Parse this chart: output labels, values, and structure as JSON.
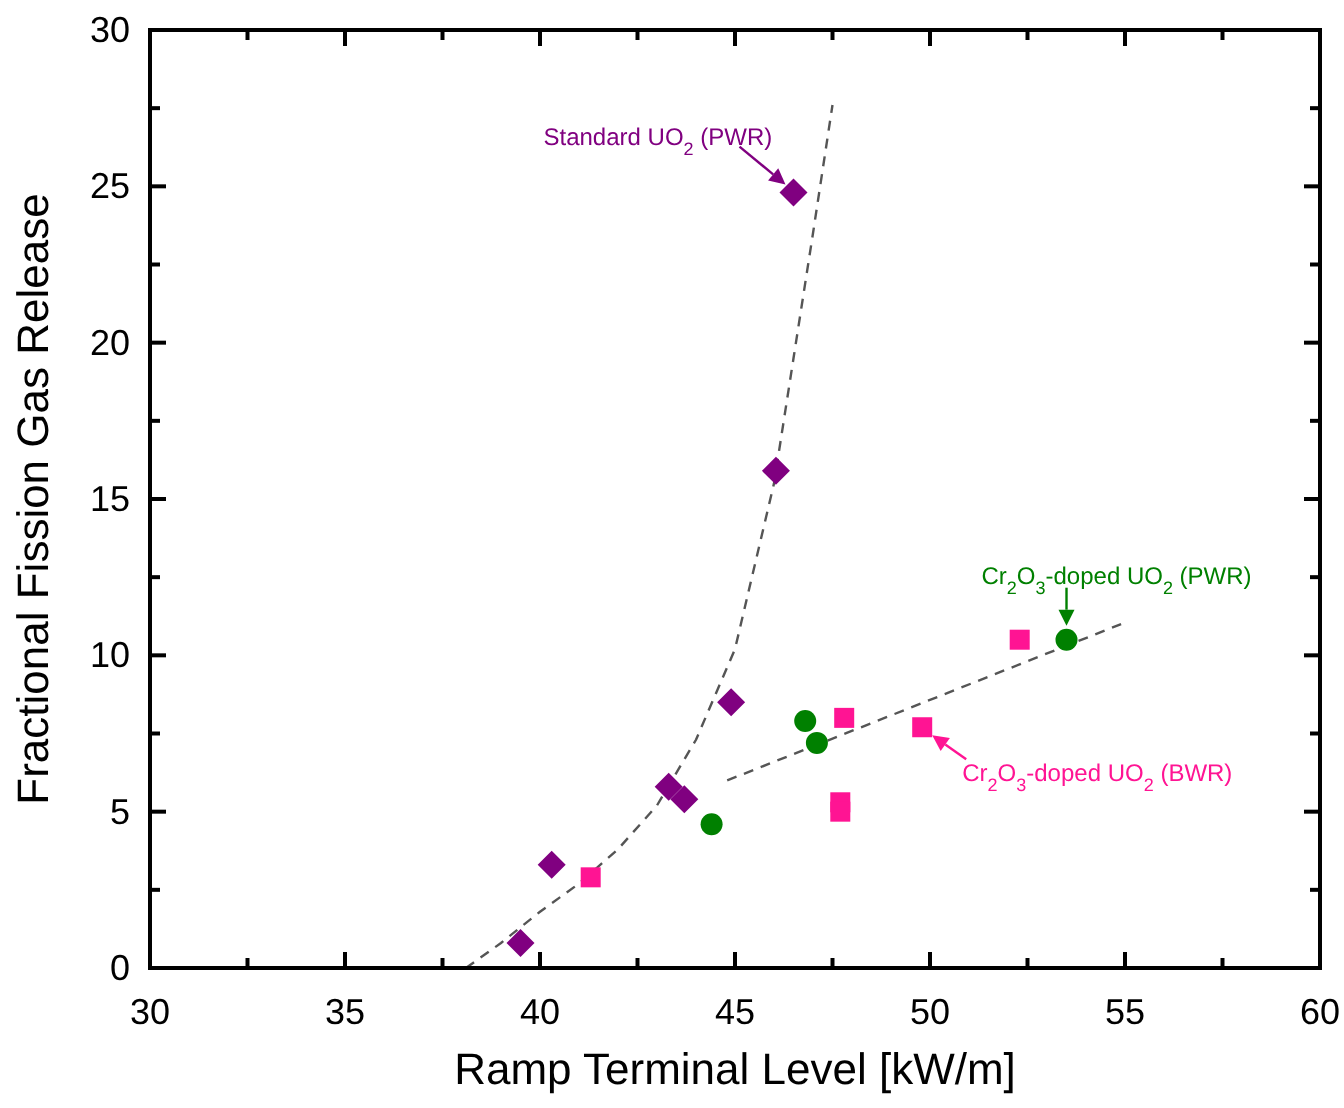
{
  "chart_data": {
    "type": "scatter",
    "xlabel": "Ramp Terminal Level [kW/m]",
    "ylabel": "Fractional Fission Gas Release",
    "xlim": [
      30,
      60
    ],
    "ylim": [
      0,
      30
    ],
    "xticks": [
      30,
      {
        "value": 32.5,
        "label": null
      },
      35,
      {
        "value": 37.5,
        "label": null
      },
      40,
      {
        "value": 42.5,
        "label": null
      },
      45,
      {
        "value": 47.5,
        "label": null
      },
      50,
      {
        "value": 52.5,
        "label": null
      },
      55,
      {
        "value": 57.5,
        "label": null
      },
      60
    ],
    "yticks": [
      0,
      {
        "value": 2.5,
        "label": null
      },
      5,
      {
        "value": 7.5,
        "label": null
      },
      10,
      {
        "value": 12.5,
        "label": null
      },
      15,
      {
        "value": 17.5,
        "label": null
      },
      20,
      {
        "value": 22.5,
        "label": null
      },
      25,
      {
        "value": 27.5,
        "label": null
      },
      30
    ],
    "grid": false,
    "series": [
      {
        "type": "line",
        "color": "#555555",
        "line_style": "dashed",
        "marker": "none",
        "x": [
          38.1,
          39,
          40,
          41,
          42,
          43,
          44,
          45,
          46,
          46.5,
          47,
          47.5
        ],
        "values": [
          0,
          0.8,
          1.8,
          2.7,
          3.8,
          5.2,
          7.3,
          10.2,
          15.5,
          19.5,
          23.5,
          27.6
        ]
      },
      {
        "type": "line",
        "color": "#555555",
        "line_style": "dashed",
        "marker": "none",
        "x": [
          44.8,
          54.9
        ],
        "values": [
          6.0,
          11.0
        ]
      },
      {
        "color": "#800080",
        "marker": "diamond",
        "x": [
          39.5,
          40.3,
          43.3,
          43.7,
          44.9,
          46.05,
          46.5
        ],
        "values": [
          0.8,
          3.3,
          5.8,
          5.4,
          8.5,
          15.9,
          24.8
        ]
      },
      {
        "color": "#008000",
        "marker": "circle",
        "x": [
          44.4,
          46.8,
          47.1,
          53.5
        ],
        "values": [
          4.6,
          7.9,
          7.2,
          10.5
        ]
      },
      {
        "color": "#ff1493",
        "marker": "square",
        "x": [
          41.3,
          47.8,
          47.7,
          47.7,
          49.8,
          52.3
        ],
        "values": [
          2.9,
          8.0,
          5.3,
          5.0,
          7.7,
          10.5
        ]
      }
    ],
    "annotations": [
      {
        "text": "Standard UO$_{2}$ (PWR)",
        "x": 46.5,
        "y": 24.8
      },
      {
        "text": "Cr$_{2}$O$_{3}$-doped UO$_{2}$ (PWR)",
        "x": 53.5,
        "y": 10.5
      },
      {
        "text": "Cr$_{2}$O$_{3}$-doped UO$_{2}$ (BWR)",
        "x": 49.8,
        "y": 7.7
      }
    ]
  }
}
